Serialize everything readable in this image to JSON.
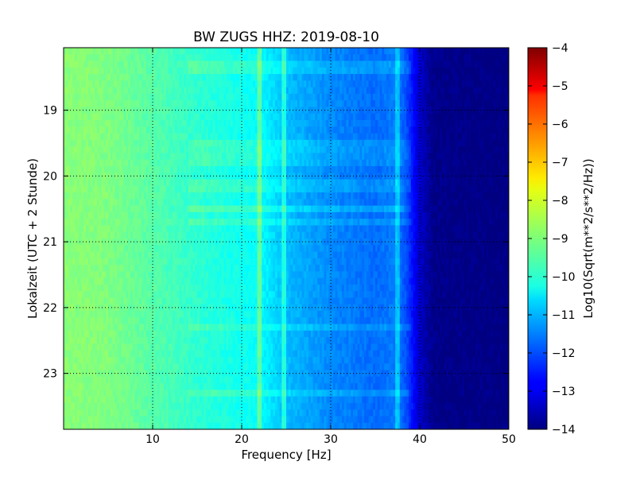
{
  "chart_data": {
    "type": "heatmap",
    "title": "BW ZUGS HHZ: 2019-08-10",
    "xlabel": "Frequency [Hz]",
    "ylabel": "Lokalzeit (UTC + 2 Stunde)",
    "xlim": [
      0,
      50
    ],
    "ylim": [
      18.05,
      23.85
    ],
    "y_inverted": true,
    "x_ticks": [
      10,
      20,
      30,
      40,
      50
    ],
    "x_tick_labels": [
      "10",
      "20",
      "30",
      "40",
      "50"
    ],
    "y_ticks": [
      19,
      20,
      21,
      22,
      23
    ],
    "y_tick_labels": [
      "19",
      "20",
      "21",
      "22",
      "23"
    ],
    "grid": true,
    "colorbar": {
      "label": "Log10(Sqrt(m**2/s**2/Hz))",
      "range": [
        -14,
        -4
      ],
      "ticks": [
        -4,
        -5,
        -6,
        -7,
        -8,
        -9,
        -10,
        -11,
        -12,
        -13,
        -14
      ],
      "tick_labels": [
        "−4",
        "−5",
        "−6",
        "−7",
        "−8",
        "−9",
        "−10",
        "−11",
        "−12",
        "−13",
        "−14"
      ],
      "colormap": "jet"
    },
    "frequency_profile": [
      {
        "freq": 0,
        "value": -8.9
      },
      {
        "freq": 5,
        "value": -9.0
      },
      {
        "freq": 10,
        "value": -9.4
      },
      {
        "freq": 15,
        "value": -9.8
      },
      {
        "freq": 20,
        "value": -10.1
      },
      {
        "freq": 22,
        "value": -10.2
      },
      {
        "freq": 25,
        "value": -10.9
      },
      {
        "freq": 30,
        "value": -11.4
      },
      {
        "freq": 35,
        "value": -11.7
      },
      {
        "freq": 37.5,
        "value": -11.5
      },
      {
        "freq": 38.5,
        "value": -12.0
      },
      {
        "freq": 40,
        "value": -13.3
      },
      {
        "freq": 41.5,
        "value": -13.9
      },
      {
        "freq": 50,
        "value": -14.0
      }
    ],
    "narrowband_lines": [
      {
        "freq": 22.0,
        "delta": 0.9
      },
      {
        "freq": 24.7,
        "delta": 0.9
      },
      {
        "freq": 37.5,
        "delta": 0.7
      }
    ],
    "horizontal_bands": [
      {
        "time": 18.35,
        "delta": 0.35
      },
      {
        "time": 19.55,
        "delta": 0.3
      },
      {
        "time": 19.75,
        "delta": 0.25
      },
      {
        "time": 20.15,
        "delta": 0.3
      },
      {
        "time": 20.5,
        "delta": 0.45
      },
      {
        "time": 20.7,
        "delta": 0.3
      },
      {
        "time": 22.3,
        "delta": 0.3
      },
      {
        "time": 23.3,
        "delta": 0.35
      }
    ]
  }
}
